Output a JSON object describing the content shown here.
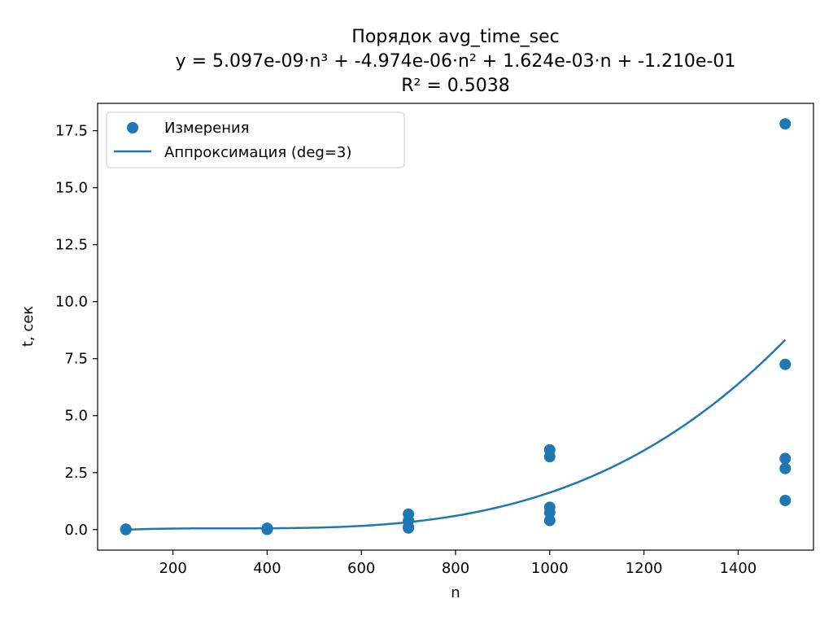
{
  "chart_data": {
    "type": "scatter",
    "title_lines": [
      "Порядок avg_time_sec",
      "y = 5.097e-09·n³ + -4.974e-06·n² + 1.624e-03·n + -1.210e-01",
      "R² = 0.5038"
    ],
    "xlabel": "n",
    "ylabel": "t, сек",
    "xlim": [
      40,
      1560
    ],
    "ylim": [
      -0.9,
      18.7
    ],
    "x_ticks": [
      200,
      400,
      600,
      800,
      1000,
      1200,
      1400
    ],
    "y_ticks": [
      0.0,
      2.5,
      5.0,
      7.5,
      10.0,
      12.5,
      15.0,
      17.5
    ],
    "y_tick_labels": [
      "0.0",
      "2.5",
      "5.0",
      "7.5",
      "10.0",
      "12.5",
      "15.0",
      "17.5"
    ],
    "grid": false,
    "legend_position": "upper-left",
    "colors": {
      "series": "#1f77b4"
    },
    "series": [
      {
        "name": "Измерения",
        "kind": "scatter",
        "points": [
          [
            100,
            0.0
          ],
          [
            100,
            0.01
          ],
          [
            100,
            0.02
          ],
          [
            400,
            0.01
          ],
          [
            400,
            0.04
          ],
          [
            400,
            0.06
          ],
          [
            700,
            0.07
          ],
          [
            700,
            0.12
          ],
          [
            700,
            0.4
          ],
          [
            700,
            0.68
          ],
          [
            1000,
            0.4
          ],
          [
            1000,
            0.75
          ],
          [
            1000,
            0.98
          ],
          [
            1000,
            3.2
          ],
          [
            1000,
            3.5
          ],
          [
            1500,
            1.28
          ],
          [
            1500,
            2.68
          ],
          [
            1500,
            3.12
          ],
          [
            1500,
            7.25
          ],
          [
            1500,
            17.8
          ]
        ]
      },
      {
        "name": "Аппроксимация (deg=3)",
        "kind": "line",
        "polynomial": [
          5.097e-09,
          -4.974e-06,
          0.001624,
          -0.121
        ],
        "x_range": [
          100,
          1500
        ]
      }
    ]
  }
}
